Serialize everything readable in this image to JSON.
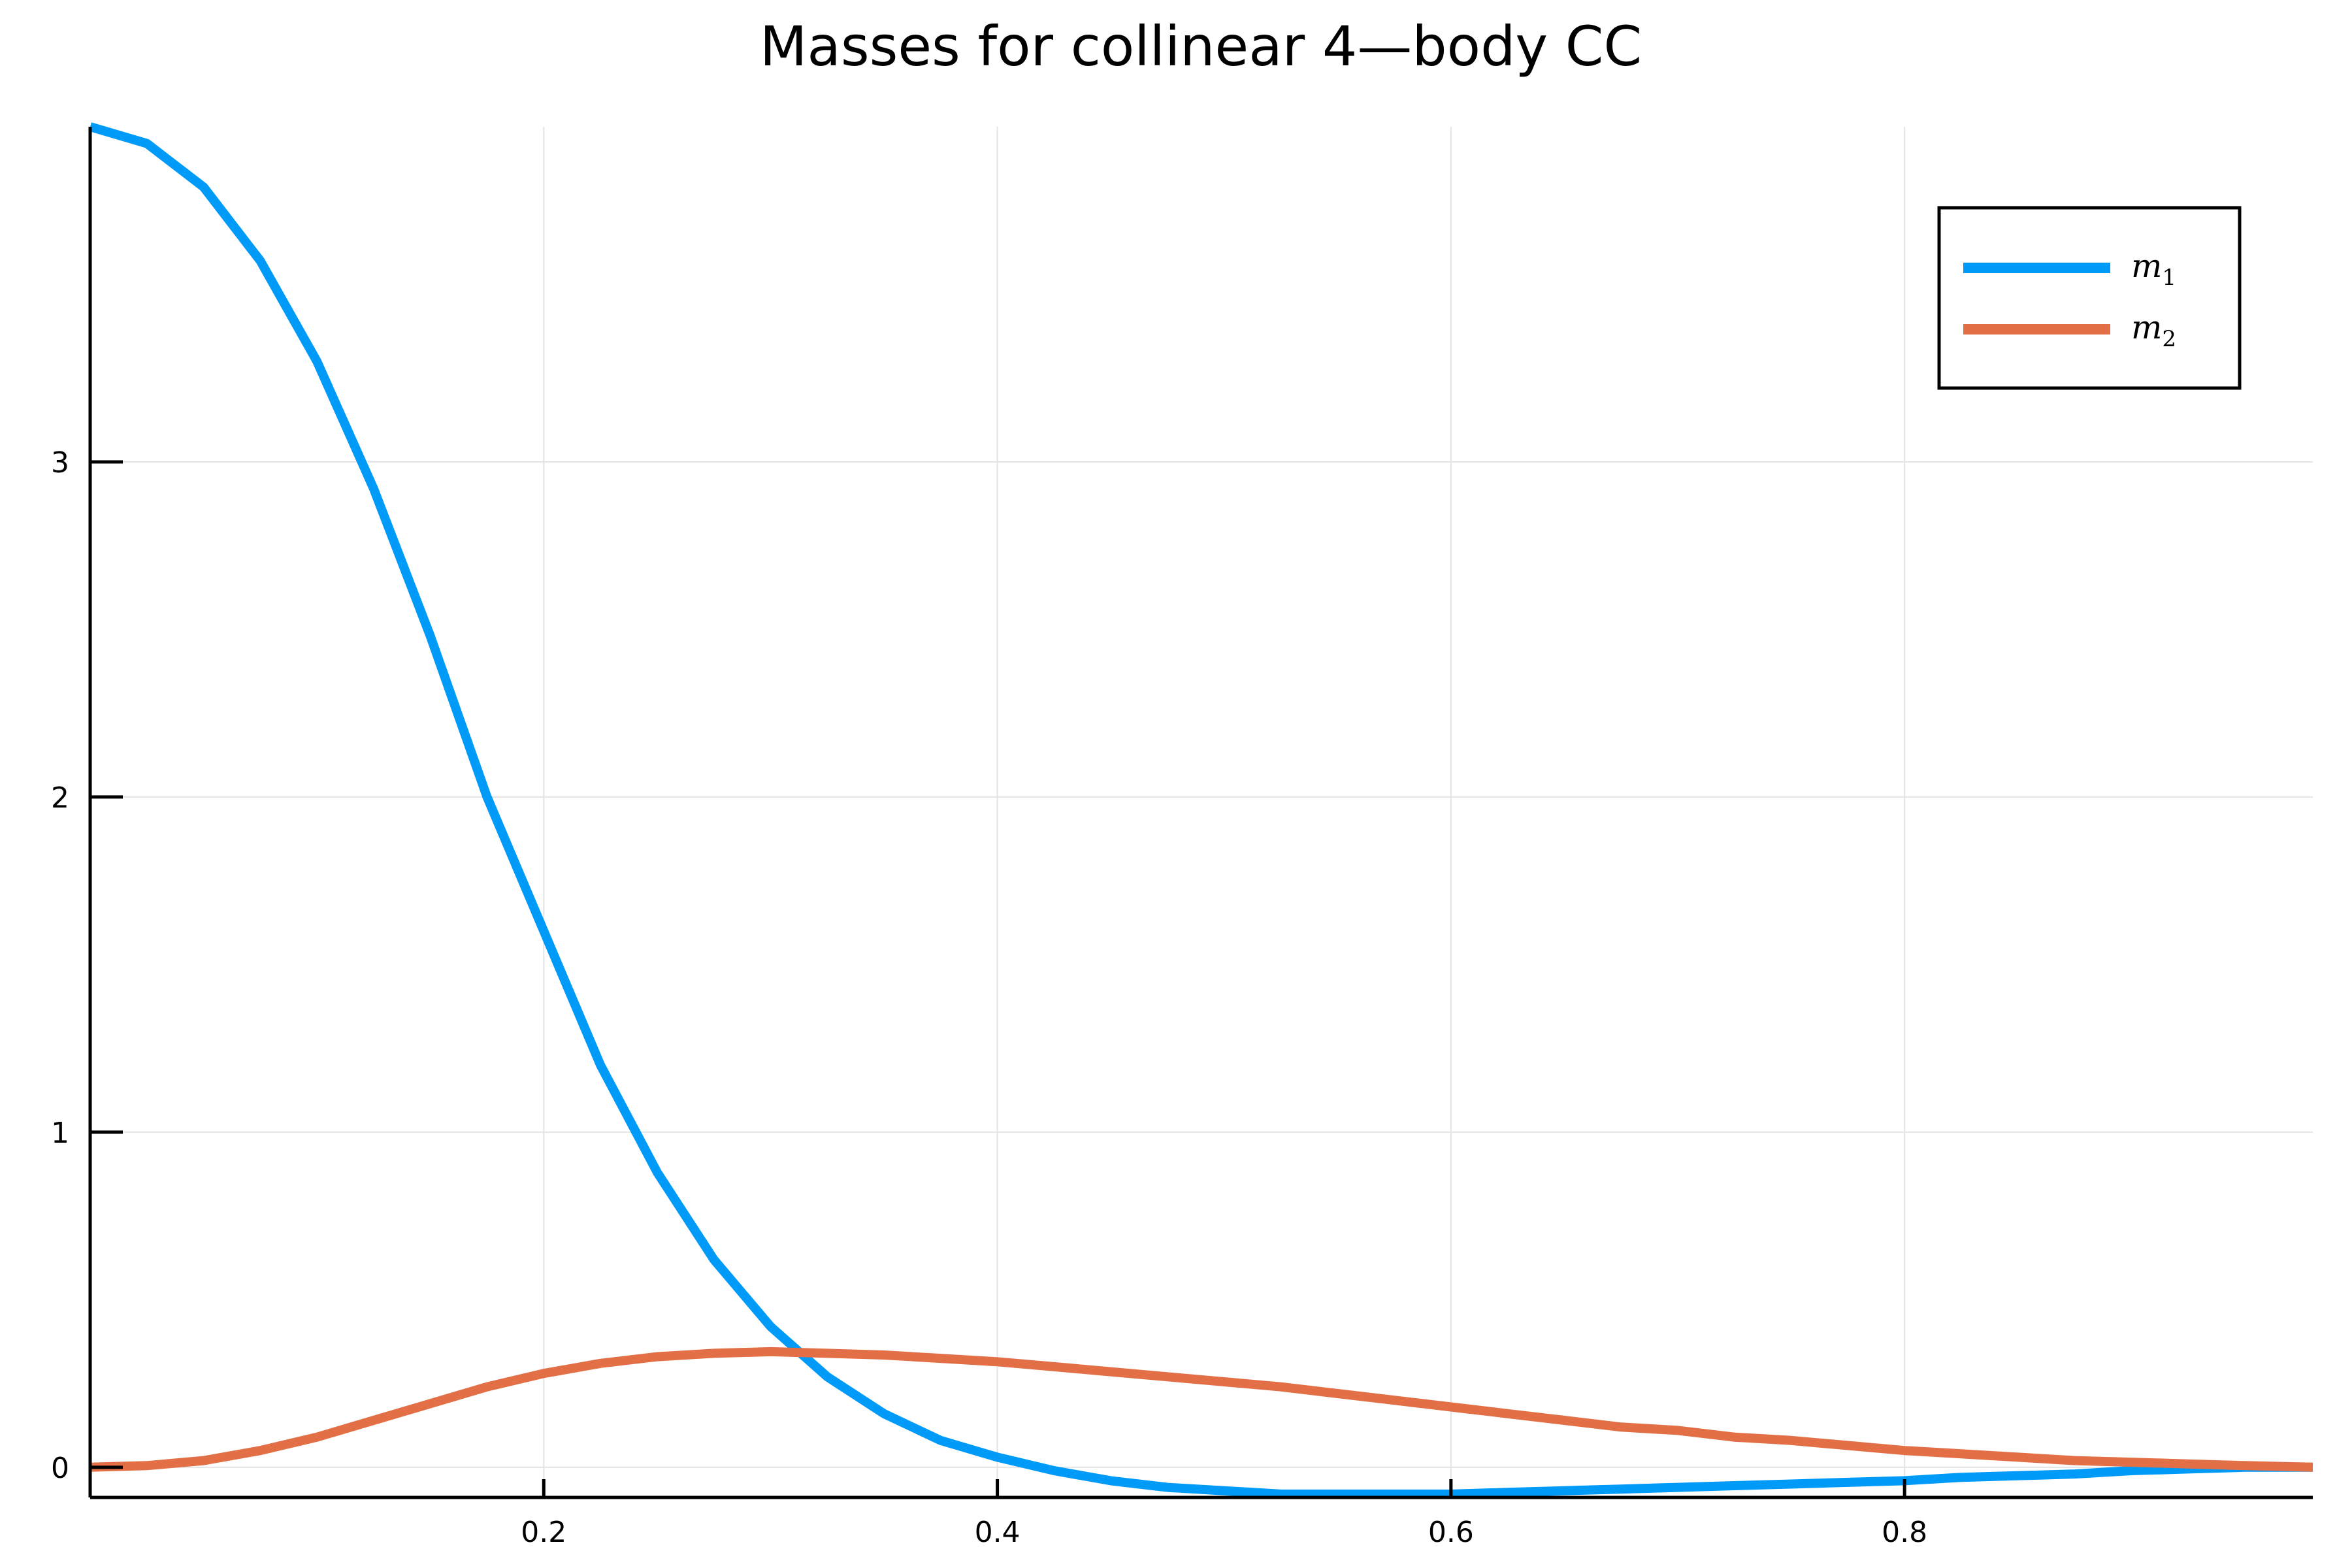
{
  "chart_data": {
    "type": "line",
    "title": "Masses for collinear 4—body CC",
    "xlabel": "",
    "ylabel": "",
    "xlim": [
      0.0,
      0.98
    ],
    "ylim": [
      -0.09,
      4.0
    ],
    "xticks": [
      0.2,
      0.4,
      0.6,
      0.8
    ],
    "xtick_labels": [
      "0.2",
      "0.4",
      "0.6",
      "0.8"
    ],
    "yticks": [
      0,
      1,
      2,
      3
    ],
    "ytick_labels": [
      "0",
      "1",
      "2",
      "3"
    ],
    "grid": true,
    "legend_position": "top-right",
    "colors": {
      "m1": "#009af9",
      "m2": "#e26f46"
    },
    "x": [
      0.0,
      0.025,
      0.05,
      0.075,
      0.1,
      0.125,
      0.15,
      0.175,
      0.2,
      0.225,
      0.25,
      0.275,
      0.3,
      0.325,
      0.35,
      0.375,
      0.4,
      0.425,
      0.45,
      0.475,
      0.5,
      0.525,
      0.55,
      0.575,
      0.6,
      0.625,
      0.65,
      0.675,
      0.7,
      0.725,
      0.75,
      0.775,
      0.8,
      0.825,
      0.85,
      0.875,
      0.9,
      0.925,
      0.95,
      0.98
    ],
    "series": [
      {
        "name": "m",
        "subscript": "1",
        "color": "#009af9",
        "values": [
          4.0,
          3.95,
          3.82,
          3.6,
          3.3,
          2.92,
          2.48,
          2.0,
          1.6,
          1.2,
          0.88,
          0.62,
          0.42,
          0.27,
          0.16,
          0.08,
          0.03,
          -0.01,
          -0.04,
          -0.06,
          -0.07,
          -0.08,
          -0.08,
          -0.08,
          -0.08,
          -0.075,
          -0.07,
          -0.065,
          -0.06,
          -0.055,
          -0.05,
          -0.045,
          -0.04,
          -0.03,
          -0.025,
          -0.02,
          -0.01,
          -0.005,
          0.0,
          0.0
        ]
      },
      {
        "name": "m",
        "subscript": "2",
        "color": "#e26f46",
        "values": [
          0.0,
          0.005,
          0.02,
          0.05,
          0.09,
          0.14,
          0.19,
          0.24,
          0.28,
          0.31,
          0.33,
          0.34,
          0.345,
          0.34,
          0.335,
          0.325,
          0.315,
          0.3,
          0.285,
          0.27,
          0.255,
          0.24,
          0.22,
          0.2,
          0.18,
          0.16,
          0.14,
          0.12,
          0.11,
          0.09,
          0.08,
          0.065,
          0.05,
          0.04,
          0.03,
          0.02,
          0.015,
          0.01,
          0.005,
          0.0
        ]
      }
    ]
  }
}
